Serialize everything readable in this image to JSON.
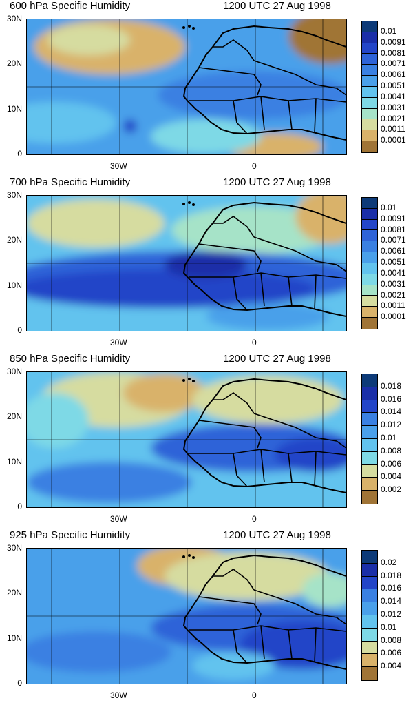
{
  "panels": [
    {
      "title": "600 hPa Specific Humidity",
      "time": "1200 UTC 27 Aug 1998",
      "colorbar": [
        "0.01",
        "0.0091",
        "0.0081",
        "0.0071",
        "0.0061",
        "0.0051",
        "0.0041",
        "0.0031",
        "0.0021",
        "0.0011",
        "0.0001"
      ],
      "nboxes": 12
    },
    {
      "title": "700 hPa Specific Humidity",
      "time": "1200 UTC 27 Aug 1998",
      "colorbar": [
        "0.01",
        "0.0091",
        "0.0081",
        "0.0071",
        "0.0061",
        "0.0051",
        "0.0041",
        "0.0031",
        "0.0021",
        "0.0011",
        "0.0001"
      ],
      "nboxes": 12
    },
    {
      "title": "850 hPa Specific Humidity",
      "time": "1200 UTC 27 Aug 1998",
      "colorbar": [
        "0.018",
        "0.016",
        "0.014",
        "0.012",
        "0.01",
        "0.008",
        "0.006",
        "0.004",
        "0.002"
      ],
      "nboxes": 10
    },
    {
      "title": "925 hPa Specific Humidity",
      "time": "1200 UTC 27 Aug 1998",
      "colorbar": [
        "0.02",
        "0.018",
        "0.016",
        "0.014",
        "0.012",
        "0.01",
        "0.008",
        "0.006",
        "0.004"
      ],
      "nboxes": 10
    }
  ],
  "axes": {
    "lat_labels": [
      "30N",
      "20N",
      "10N",
      "0"
    ],
    "lon_labels": [
      "30W",
      "0"
    ]
  },
  "palette": [
    "#0d3a78",
    "#1a2ea8",
    "#2345c8",
    "#2e63d8",
    "#3a80e2",
    "#4aa0ea",
    "#62c3ee",
    "#7ed9e6",
    "#a6e3c8",
    "#d6dca0",
    "#d9b26a",
    "#a07436"
  ]
}
